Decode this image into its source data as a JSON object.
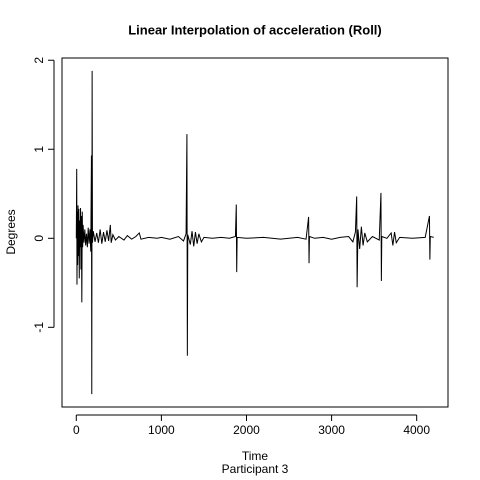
{
  "chart_data": {
    "type": "line",
    "title": "Linear Interpolation of acceleration (Roll)",
    "xlabel": "Time",
    "subtitle": "Participant  3",
    "ylabel": "Degrees",
    "xlim": [
      -168,
      4368
    ],
    "ylim": [
      -1.895,
      2.025
    ],
    "xticks": [
      0,
      1000,
      2000,
      3000,
      4000
    ],
    "yticks": [
      -1,
      0,
      1,
      2
    ],
    "x": [
      0,
      5,
      8,
      12,
      16,
      20,
      25,
      30,
      35,
      40,
      45,
      50,
      55,
      60,
      65,
      70,
      75,
      80,
      90,
      100,
      110,
      120,
      130,
      140,
      150,
      160,
      170,
      178,
      182,
      186,
      190,
      200,
      220,
      240,
      260,
      280,
      300,
      320,
      340,
      360,
      380,
      400,
      410,
      430,
      460,
      500,
      560,
      600,
      650,
      700,
      740,
      760,
      850,
      950,
      1000,
      1100,
      1200,
      1260,
      1290,
      1300,
      1305,
      1310,
      1340,
      1360,
      1380,
      1400,
      1420,
      1440,
      1470,
      1500,
      1600,
      1700,
      1800,
      1870,
      1880,
      1885,
      1890,
      2000,
      2200,
      2400,
      2600,
      2700,
      2730,
      2735,
      2740,
      2800,
      2900,
      3000,
      3100,
      3200,
      3250,
      3280,
      3295,
      3300,
      3310,
      3330,
      3350,
      3370,
      3390,
      3420,
      3480,
      3560,
      3580,
      3585,
      3590,
      3650,
      3700,
      3720,
      3740,
      3760,
      3800,
      3950,
      4100,
      4150,
      4155,
      4160,
      4200
    ],
    "series": [
      {
        "color": "#000000",
        "values": [
          0,
          0.78,
          -0.52,
          0.3,
          -0.3,
          0.37,
          -0.2,
          0.33,
          -0.45,
          0.2,
          -0.1,
          0.34,
          -0.35,
          0.25,
          -0.72,
          0.3,
          -0.1,
          0.15,
          -0.05,
          0.1,
          -0.08,
          0.05,
          -0.1,
          0.12,
          -0.06,
          0.1,
          -0.15,
          0.93,
          -1.75,
          1.88,
          -0.05,
          0.08,
          -0.04,
          0.06,
          -0.05,
          0.1,
          -0.06,
          0.07,
          -0.04,
          0.09,
          -0.03,
          0.15,
          -0.05,
          0.04,
          -0.02,
          0.02,
          -0.02,
          0.03,
          -0.01,
          0.02,
          0.06,
          -0.01,
          0.01,
          0,
          0.01,
          -0.01,
          0.02,
          -0.03,
          0.05,
          1.17,
          -1.32,
          0.04,
          -0.07,
          0.08,
          -0.09,
          0.07,
          -0.06,
          0.05,
          -0.04,
          0.01,
          0,
          0.01,
          0,
          0.02,
          0.38,
          -0.38,
          0.01,
          0,
          0.01,
          -0.01,
          0.01,
          -0.01,
          0.24,
          -0.28,
          0.02,
          0,
          0.01,
          -0.01,
          0.01,
          0.02,
          -0.04,
          0.07,
          0.47,
          -0.55,
          0.1,
          -0.12,
          0.13,
          -0.08,
          0.06,
          -0.04,
          0.02,
          -0.02,
          0.51,
          -0.48,
          0.02,
          0,
          0.06,
          -0.08,
          0.07,
          -0.05,
          0.01,
          0,
          0.01,
          0.25,
          -0.24,
          0.02,
          0.01
        ]
      }
    ]
  }
}
